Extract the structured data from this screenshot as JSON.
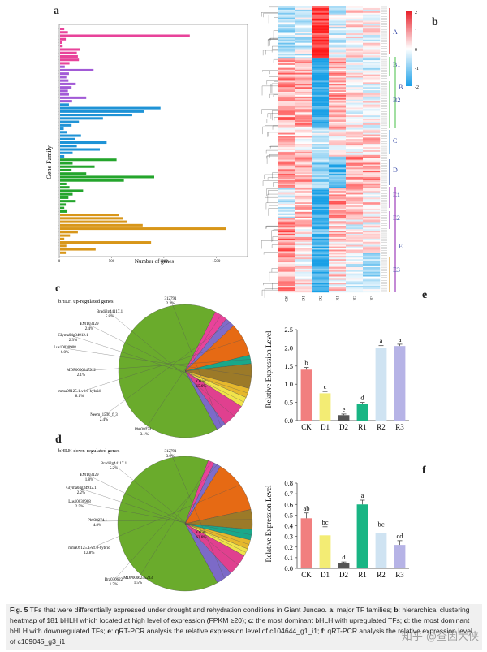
{
  "panel_labels": {
    "a": "a",
    "b": "b",
    "c": "c",
    "d": "d",
    "e": "e",
    "f": "f"
  },
  "colors": {
    "pink": "#e8439a",
    "purple": "#a25ad6",
    "blue": "#1f93d6",
    "green": "#24a52c",
    "orange": "#d89619",
    "pie_other": "#6aab2c",
    "bar_ck": "#f17f7f",
    "bar_d1": "#f3ec74",
    "bar_d2": "#555555",
    "bar_r1": "#19b584",
    "bar_r2": "#cfe3f2",
    "bar_r3": "#b6b3e6"
  },
  "caption": {
    "fig": "Fig. 5",
    "text1": " TFs that were differentially expressed under drought and rehydration conditions in Giant Juncao. ",
    "a": "a",
    "t_a": ": major TF families; ",
    "b": "b",
    "t_b": ": hierarchical clustering heatmap of 181 bHLH which located at high level of expression (FPKM ≥20); ",
    "c": "c",
    "t_c": ": the most dominant bHLH with upregulated TFs; ",
    "d": "d",
    "t_d": ": the most dominant bHLH with downregulated TFs; ",
    "e": "e",
    "t_e": ": qRT-PCR analysis the relative expression level of c104644_g1_i1; ",
    "f": "f",
    "t_f": ": qRT-PCR analysis the relative expression level of c109045_g3_i1"
  },
  "watermark": "知乎 @查因大侠",
  "chart_data": [
    {
      "id": "a",
      "type": "bar",
      "orientation": "horizontal",
      "ylabel": "Gene Family",
      "xlabel": "Number of genes",
      "xlim": [
        0,
        1800
      ],
      "xticks": [
        0,
        500,
        1000,
        1500
      ],
      "series": [
        {
          "group": "pink",
          "values": [
            40,
            75,
            1240,
            55,
            20,
            25,
            190,
            160,
            170,
            180,
            90,
            45,
            320,
            85,
            60,
            80,
            150,
            110,
            75,
            85,
            250,
            115,
            85,
            960,
            800,
            690,
            410,
            180,
            110,
            35
          ]
        },
        {
          "group": "blue_tail",
          "values": [
            65,
            200,
            140,
            445,
            160,
            380,
            120,
            40
          ]
        },
        {
          "group": "green",
          "values": [
            540,
            120,
            330,
            110,
            250,
            900,
            610,
            60,
            90,
            220,
            120,
            80,
            150,
            55,
            40,
            70
          ]
        },
        {
          "group": "orange",
          "values": [
            560,
            600,
            640,
            790,
            1590,
            170,
            95,
            40,
            870,
            60,
            340,
            55
          ]
        }
      ]
    },
    {
      "id": "b",
      "type": "heatmap",
      "colorbar": {
        "max": "2",
        "mid": "0",
        "min": "-2",
        "ticks": [
          "2",
          "1",
          "0",
          "-1",
          "-2"
        ]
      },
      "columns": [
        "CK",
        "D1",
        "D2",
        "R1",
        "R2",
        "R3"
      ],
      "clusters": [
        "A",
        "B1",
        "B",
        "B2",
        "C",
        "D",
        "E1",
        "E2",
        "E",
        "E3"
      ],
      "n_rows": 181
    },
    {
      "id": "c",
      "type": "pie",
      "title": "bHLH up-regulated genes",
      "slices": [
        {
          "label": "Other",
          "pct": "65.6%",
          "value": 65.6,
          "color": "#6aab2c"
        },
        {
          "label": "Pb038274.1",
          "pct": "3.1%",
          "value": 3.1,
          "color": "#e8439a"
        },
        {
          "label": "Neem_1536_f_3",
          "pct": "2.4%",
          "value": 2.4,
          "color": "#7f6cc9"
        },
        {
          "label": "mma09125.1-v1.0-hybrid",
          "pct": "8.1%",
          "value": 8.1,
          "color": "#e66a14"
        },
        {
          "label": "MDP0000247912",
          "pct": "2.1%",
          "value": 2.1,
          "color": "#1aa88a"
        },
        {
          "label": "Lus10030908",
          "pct": "6.0%",
          "value": 6.0,
          "color": "#9c7a28"
        },
        {
          "label": "Glyma04g34912.1",
          "pct": "2.3%",
          "value": 2.3,
          "color": "#e6b82c"
        },
        {
          "label": "EMT03129",
          "pct": "2.4%",
          "value": 2.4,
          "color": "#f1e34a"
        },
        {
          "label": "Bradi2g44117.1",
          "pct": "5.8%",
          "value": 5.8,
          "color": "#e0408f"
        },
        {
          "label": "312791",
          "pct": "2.3%",
          "value": 2.3,
          "color": "#7c6ac8"
        }
      ]
    },
    {
      "id": "d",
      "type": "pie",
      "title": "bHLH down-regulated genes",
      "slices": [
        {
          "label": "Other",
          "pct": "63.6%",
          "value": 63.6,
          "color": "#6aab2c"
        },
        {
          "label": "MDP0000245233",
          "pct": "1.5%",
          "value": 1.5,
          "color": "#e8439a"
        },
        {
          "label": "Bra030622",
          "pct": "1.7%",
          "value": 1.7,
          "color": "#7f6cc9"
        },
        {
          "label": "mma09125.1-v1.0-hybrid",
          "pct": "12.8%",
          "value": 12.8,
          "color": "#e66a14"
        },
        {
          "label": "Pb038274.1",
          "pct": "4.8%",
          "value": 4.8,
          "color": "#9c7a28"
        },
        {
          "label": "Lus10030908",
          "pct": "2.5%",
          "value": 2.5,
          "color": "#1aa88a"
        },
        {
          "label": "Glyma04g34912.1",
          "pct": "2.2%",
          "value": 2.2,
          "color": "#e6b82c"
        },
        {
          "label": "EMT03129",
          "pct": "1.8%",
          "value": 1.8,
          "color": "#f1e34a"
        },
        {
          "label": "Bradi2g44117.1",
          "pct": "5.2%",
          "value": 5.2,
          "color": "#e0408f"
        },
        {
          "label": "312791",
          "pct": "3.9%",
          "value": 3.9,
          "color": "#7c6ac8"
        }
      ]
    },
    {
      "id": "e",
      "type": "bar",
      "ylabel": "Relative Expression Level",
      "categories": [
        "CK",
        "D1",
        "D2",
        "R1",
        "R2",
        "R3"
      ],
      "values": [
        1.4,
        0.75,
        0.15,
        0.45,
        2.0,
        2.05
      ],
      "errors": [
        0.06,
        0.05,
        0.03,
        0.05,
        0.06,
        0.05
      ],
      "letters": [
        "b",
        "c",
        "e",
        "d",
        "a",
        "a"
      ],
      "ylim": [
        0,
        2.5
      ],
      "yticks": [
        "0.0",
        "0.5",
        "1.0",
        "1.5",
        "2.0",
        "2.5"
      ]
    },
    {
      "id": "f",
      "type": "bar",
      "ylabel": "Relative Expression Level",
      "categories": [
        "CK",
        "D1",
        "D2",
        "R1",
        "R2",
        "R3"
      ],
      "values": [
        0.47,
        0.31,
        0.05,
        0.6,
        0.33,
        0.22
      ],
      "errors": [
        0.05,
        0.08,
        0.01,
        0.04,
        0.04,
        0.04
      ],
      "letters": [
        "ab",
        "bc",
        "d",
        "a",
        "bc",
        "cd"
      ],
      "ylim": [
        0,
        0.8
      ],
      "yticks": [
        "0.0",
        "0.1",
        "0.2",
        "0.3",
        "0.4",
        "0.5",
        "0.6",
        "0.7",
        "0.8"
      ]
    }
  ]
}
